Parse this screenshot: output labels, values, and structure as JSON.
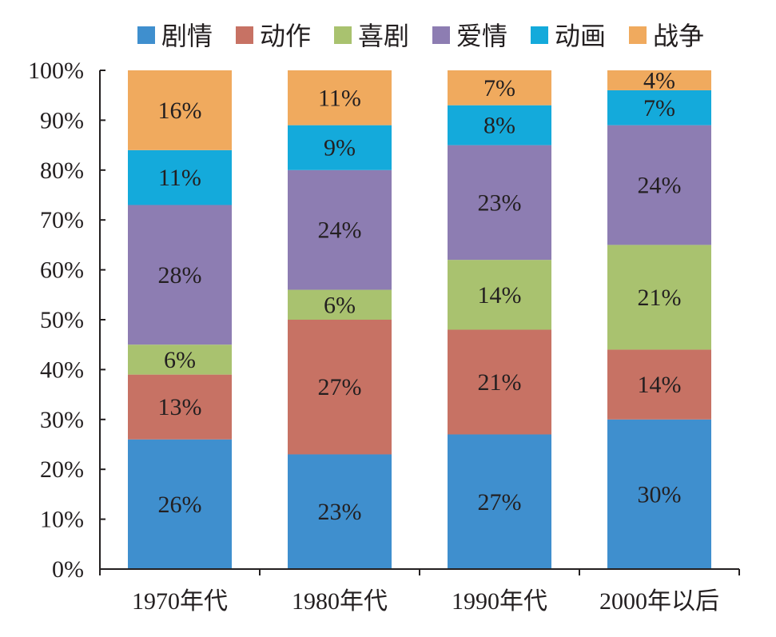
{
  "chart_data": {
    "type": "bar",
    "stacked": true,
    "title": "",
    "xlabel": "",
    "ylabel": "",
    "ylim": [
      0,
      100
    ],
    "yticks": [
      "0%",
      "10%",
      "20%",
      "30%",
      "40%",
      "50%",
      "60%",
      "70%",
      "80%",
      "90%",
      "100%"
    ],
    "categories": [
      "1970年代",
      "1980年代",
      "1990年代",
      "2000年以后"
    ],
    "legend_position": "top",
    "series": [
      {
        "name": "剧情",
        "color": "#3f8fce",
        "values": [
          26,
          23,
          27,
          30
        ]
      },
      {
        "name": "动作",
        "color": "#c77264",
        "values": [
          13,
          27,
          21,
          14
        ]
      },
      {
        "name": "喜剧",
        "color": "#a9c26f",
        "values": [
          6,
          6,
          14,
          21
        ]
      },
      {
        "name": "爱情",
        "color": "#8d7db2",
        "values": [
          28,
          24,
          23,
          24
        ]
      },
      {
        "name": "动画",
        "color": "#14aadb",
        "values": [
          11,
          9,
          8,
          7
        ]
      },
      {
        "name": "战争",
        "color": "#f0aa5e",
        "values": [
          16,
          11,
          7,
          4
        ]
      }
    ]
  }
}
